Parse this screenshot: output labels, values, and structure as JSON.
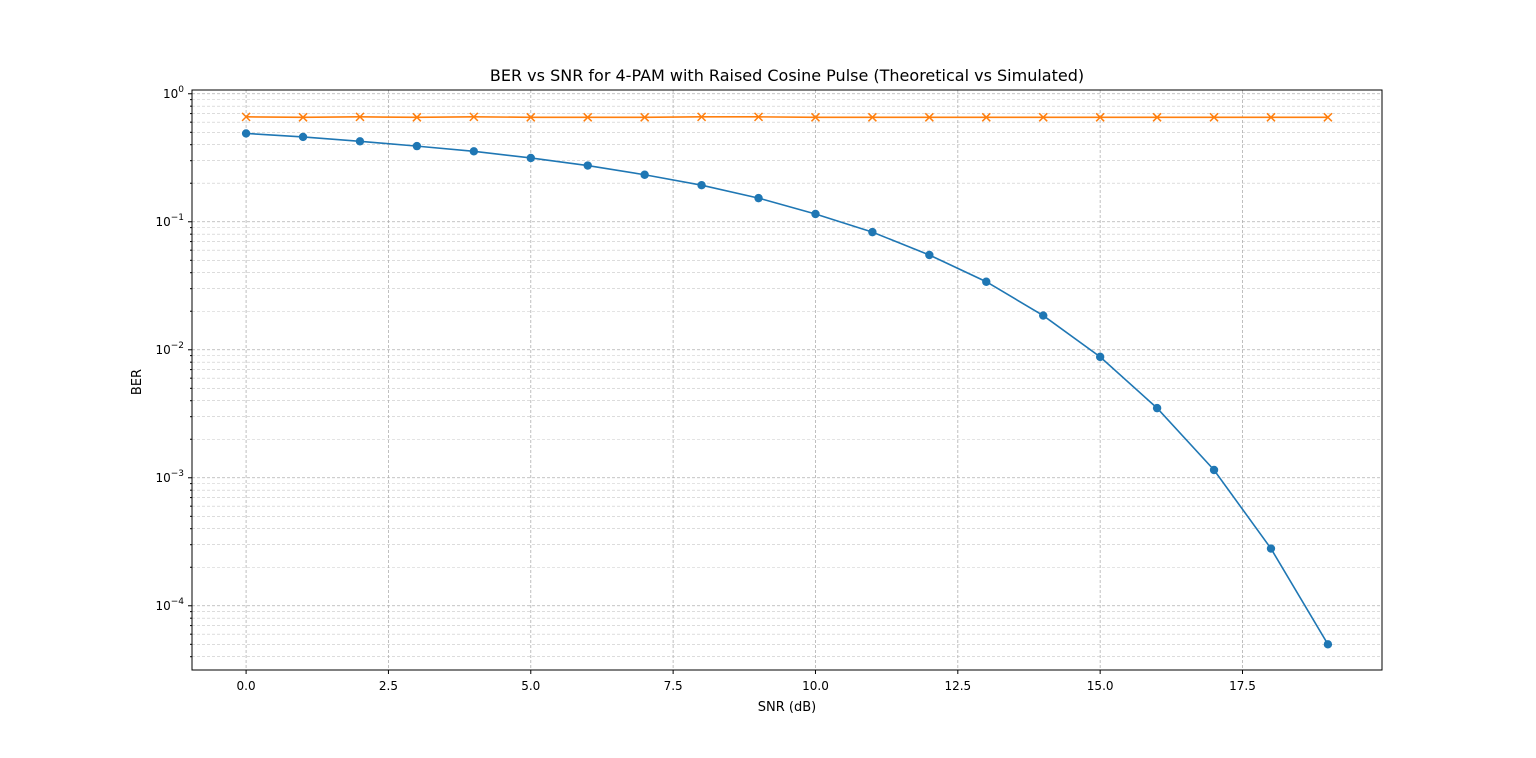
{
  "chart_data": {
    "type": "line",
    "title": "BER vs SNR for 4-PAM with Raised Cosine Pulse (Theoretical vs Simulated)",
    "xlabel": "SNR (dB)",
    "ylabel": "BER",
    "xscale": "linear",
    "yscale": "log",
    "xlim": [
      -0.95,
      19.95
    ],
    "ylim": [
      3.15e-05,
      1.07
    ],
    "xticks": [
      0.0,
      2.5,
      5.0,
      7.5,
      10.0,
      12.5,
      15.0,
      17.5
    ],
    "xtick_labels": [
      "0.0",
      "2.5",
      "5.0",
      "7.5",
      "10.0",
      "12.5",
      "15.0",
      "17.5"
    ],
    "yticks": [
      0.0001,
      0.001,
      0.01,
      0.1,
      1
    ],
    "ytick_labels": [
      {
        "base": "10",
        "exp": "−4"
      },
      {
        "base": "10",
        "exp": "−3"
      },
      {
        "base": "10",
        "exp": "−2"
      },
      {
        "base": "10",
        "exp": "−1"
      },
      {
        "base": "10",
        "exp": "0"
      }
    ],
    "grid": true,
    "legend": false,
    "x": [
      0,
      1,
      2,
      3,
      4,
      5,
      6,
      7,
      8,
      9,
      10,
      11,
      12,
      13,
      14,
      15,
      16,
      17,
      18,
      19
    ],
    "series": [
      {
        "color": "#1f77b4",
        "marker": "circle",
        "values": [
          0.49,
          0.46,
          0.425,
          0.39,
          0.355,
          0.315,
          0.275,
          0.233,
          0.193,
          0.153,
          0.115,
          0.083,
          0.055,
          0.034,
          0.0185,
          0.0088,
          0.0035,
          0.00115,
          0.00028,
          5e-05
        ]
      },
      {
        "color": "#ff7f0e",
        "marker": "x",
        "values": [
          0.66,
          0.655,
          0.66,
          0.655,
          0.66,
          0.655,
          0.655,
          0.655,
          0.66,
          0.66,
          0.655,
          0.655,
          0.655,
          0.655,
          0.655,
          0.655,
          0.655,
          0.655,
          0.655,
          0.655
        ]
      }
    ]
  }
}
